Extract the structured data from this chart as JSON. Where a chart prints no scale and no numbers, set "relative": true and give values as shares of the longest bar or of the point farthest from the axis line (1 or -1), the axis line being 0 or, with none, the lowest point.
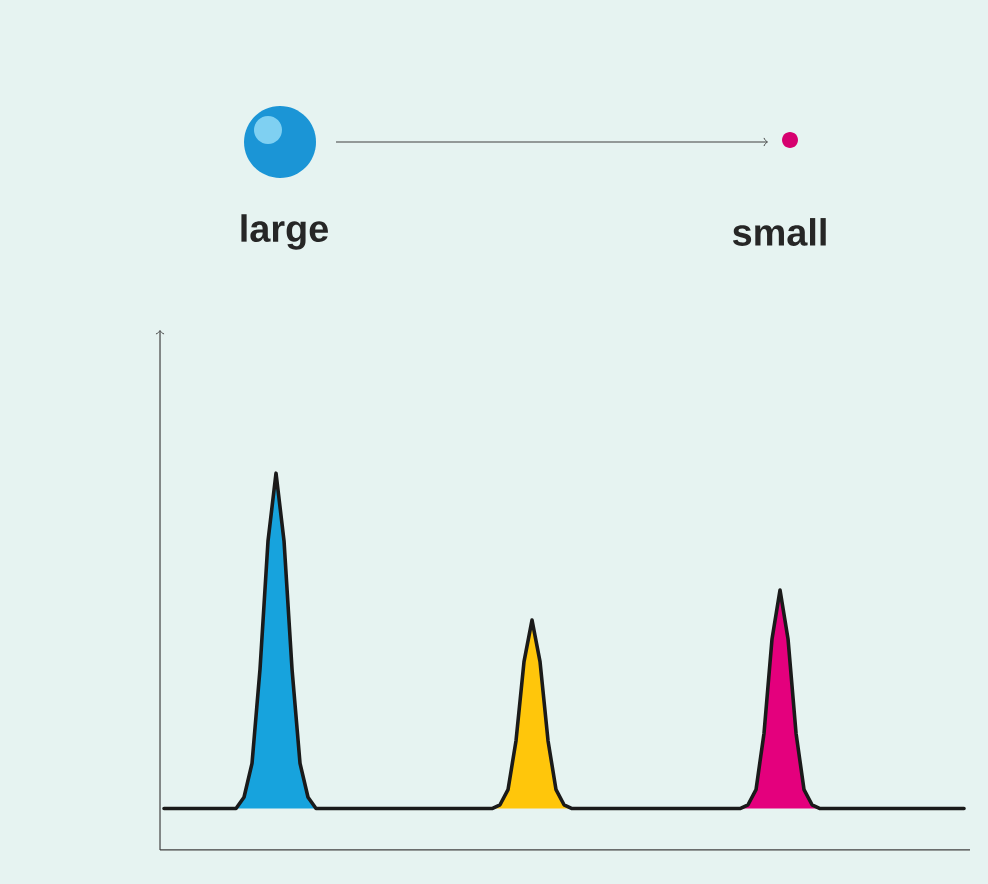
{
  "chart_data": {
    "type": "line",
    "relative": true,
    "categories": [
      null,
      null,
      null,
      null,
      null,
      null,
      null,
      null,
      null,
      null,
      null,
      null,
      null,
      null,
      null,
      null,
      null,
      null,
      null,
      null,
      null,
      null,
      null,
      null,
      null,
      null,
      null,
      null,
      null,
      null,
      null,
      null,
      null,
      null,
      null,
      null,
      null,
      null,
      null,
      null,
      null,
      null,
      null,
      null,
      null,
      null,
      null,
      null,
      null,
      null,
      null,
      null,
      null,
      null,
      null,
      null,
      null,
      null,
      null,
      null,
      null,
      null,
      null,
      null,
      null,
      null,
      null,
      null,
      null,
      null,
      null,
      null,
      null,
      null,
      null,
      null,
      null,
      null,
      null,
      null,
      null,
      null,
      null,
      null,
      null,
      null,
      null,
      null,
      null,
      null,
      null,
      null,
      null,
      null,
      null,
      null,
      null,
      null,
      null,
      null,
      null
    ],
    "annotations": [
      "large",
      "small"
    ],
    "series": [
      {
        "type": "area",
        "color": "#17a3dd",
        "values": [
          null,
          null,
          null,
          null,
          null,
          null,
          null,
          null,
          null,
          0.11,
          0.14,
          0.23,
          0.48,
          0.82,
          1.0,
          0.82,
          0.48,
          0.23,
          0.14,
          0.11,
          null,
          null,
          null,
          null,
          null,
          null,
          null,
          null,
          null,
          null,
          null,
          null,
          null,
          null,
          null,
          null,
          null,
          null,
          null,
          null,
          null,
          null,
          null,
          null,
          null,
          null,
          null,
          null,
          null,
          null,
          null,
          null,
          null,
          null,
          null,
          null,
          null,
          null,
          null,
          null,
          null,
          null,
          null,
          null,
          null,
          null,
          null,
          null,
          null,
          null,
          null,
          null,
          null,
          null,
          null,
          null,
          null,
          null,
          null,
          null,
          null,
          null,
          null,
          null,
          null,
          null,
          null,
          null,
          null,
          null,
          null,
          null,
          null,
          null,
          null,
          null,
          null,
          null,
          null,
          null,
          null
        ]
      },
      {
        "type": "area",
        "color": "#ffc60b",
        "values": [
          null,
          null,
          null,
          null,
          null,
          null,
          null,
          null,
          null,
          null,
          null,
          null,
          null,
          null,
          null,
          null,
          null,
          null,
          null,
          null,
          null,
          null,
          null,
          null,
          null,
          null,
          null,
          null,
          null,
          null,
          null,
          null,
          null,
          null,
          null,
          null,
          null,
          null,
          null,
          null,
          null,
          0.11,
          0.12,
          0.16,
          0.29,
          0.5,
          0.61,
          0.5,
          0.29,
          0.16,
          0.12,
          0.11,
          null,
          null,
          null,
          null,
          null,
          null,
          null,
          null,
          null,
          null,
          null,
          null,
          null,
          null,
          null,
          null,
          null,
          null,
          null,
          null,
          null,
          null,
          null,
          null,
          null,
          null,
          null,
          null,
          null,
          null,
          null,
          null,
          null,
          null,
          null,
          null,
          null,
          null,
          null,
          null,
          null,
          null,
          null,
          null,
          null,
          null,
          null,
          null,
          null
        ]
      },
      {
        "type": "area",
        "color": "#e4007d",
        "values": [
          null,
          null,
          null,
          null,
          null,
          null,
          null,
          null,
          null,
          null,
          null,
          null,
          null,
          null,
          null,
          null,
          null,
          null,
          null,
          null,
          null,
          null,
          null,
          null,
          null,
          null,
          null,
          null,
          null,
          null,
          null,
          null,
          null,
          null,
          null,
          null,
          null,
          null,
          null,
          null,
          null,
          null,
          null,
          null,
          null,
          null,
          null,
          null,
          null,
          null,
          null,
          null,
          null,
          null,
          null,
          null,
          null,
          null,
          null,
          null,
          null,
          null,
          null,
          null,
          null,
          null,
          null,
          null,
          null,
          null,
          null,
          null,
          0.11,
          0.12,
          0.16,
          0.31,
          0.56,
          0.69,
          0.56,
          0.31,
          0.16,
          0.12,
          0.11,
          null,
          null,
          null,
          null,
          null,
          null,
          null,
          null,
          null,
          null,
          null,
          null,
          null,
          null,
          null,
          null,
          null,
          null
        ]
      },
      {
        "color": "#1a1a1a",
        "values": [
          0.11,
          0.11,
          0.11,
          0.11,
          0.11,
          0.11,
          0.11,
          0.11,
          0.11,
          0.11,
          0.14,
          0.23,
          0.48,
          0.82,
          1.0,
          0.82,
          0.48,
          0.23,
          0.14,
          0.11,
          0.11,
          0.11,
          0.11,
          0.11,
          0.11,
          0.11,
          0.11,
          0.11,
          0.11,
          0.11,
          0.11,
          0.11,
          0.11,
          0.11,
          0.11,
          0.11,
          0.11,
          0.11,
          0.11,
          0.11,
          0.11,
          0.11,
          0.12,
          0.16,
          0.29,
          0.5,
          0.61,
          0.5,
          0.29,
          0.16,
          0.12,
          0.11,
          0.11,
          0.11,
          0.11,
          0.11,
          0.11,
          0.11,
          0.11,
          0.11,
          0.11,
          0.11,
          0.11,
          0.11,
          0.11,
          0.11,
          0.11,
          0.11,
          0.11,
          0.11,
          0.11,
          0.11,
          0.11,
          0.12,
          0.16,
          0.31,
          0.56,
          0.69,
          0.56,
          0.31,
          0.16,
          0.12,
          0.11,
          0.11,
          0.11,
          0.11,
          0.11,
          0.11,
          0.11,
          0.11,
          0.11,
          0.11,
          0.11,
          0.11,
          0.11,
          0.11,
          0.11,
          0.11,
          0.11,
          0.11,
          0.11
        ]
      }
    ]
  }
}
